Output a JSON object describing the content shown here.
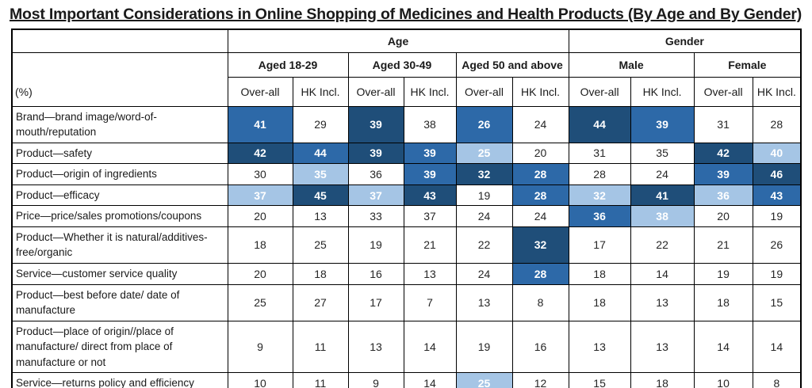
{
  "title": "Most Important Considerations in Online Shopping of Medicines and Health Products (By Age and By Gender)",
  "colors": {
    "dark": "#1F4E79",
    "medium": "#2D69A8",
    "light": "#A5C5E5",
    "highlight_text": "#FFFFFF"
  },
  "table": {
    "unit_label": "(%)",
    "group_headers": [
      {
        "label": "Age",
        "span": 6
      },
      {
        "label": "Gender",
        "span": 4
      }
    ],
    "subgroup_headers": [
      "Aged 18-29",
      "Aged 30-49",
      "Aged 50 and above",
      "Male",
      "Female"
    ],
    "measure_headers": [
      "Over-all",
      "HK Incl.",
      "Over-all",
      "HK Incl.",
      "Over-all",
      "HK Incl.",
      "Over-all",
      "HK Incl.",
      "Over-all",
      "HK Incl."
    ],
    "rows": [
      {
        "label": "Brand—brand image/word-of-mouth/reputation",
        "values": [
          41,
          29,
          39,
          38,
          26,
          24,
          44,
          39,
          31,
          28
        ],
        "highlights": [
          "m",
          "",
          "d",
          "",
          "m",
          "",
          "d",
          "m",
          "",
          ""
        ]
      },
      {
        "label": "Product—safety",
        "values": [
          42,
          44,
          39,
          39,
          25,
          20,
          31,
          35,
          42,
          40
        ],
        "highlights": [
          "d",
          "m",
          "d",
          "m",
          "l",
          "",
          "",
          "",
          "d",
          "l"
        ]
      },
      {
        "label": "Product—origin of ingredients",
        "values": [
          30,
          35,
          36,
          39,
          32,
          28,
          28,
          24,
          39,
          46
        ],
        "highlights": [
          "",
          "l",
          "",
          "m",
          "d",
          "m",
          "",
          "",
          "m",
          "d"
        ]
      },
      {
        "label": "Product—efficacy",
        "values": [
          37,
          45,
          37,
          43,
          19,
          28,
          32,
          41,
          36,
          43
        ],
        "highlights": [
          "l",
          "d",
          "l",
          "d",
          "",
          "m",
          "l",
          "d",
          "l",
          "m"
        ]
      },
      {
        "label": "Price—price/sales promotions/coupons",
        "values": [
          20,
          13,
          33,
          37,
          24,
          24,
          36,
          38,
          20,
          19
        ],
        "highlights": [
          "",
          "",
          "",
          "",
          "",
          "",
          "m",
          "l",
          "",
          ""
        ]
      },
      {
        "label": "Product—Whether it is natural/additives-free/organic",
        "values": [
          18,
          25,
          19,
          21,
          22,
          32,
          17,
          22,
          21,
          26
        ],
        "highlights": [
          "",
          "",
          "",
          "",
          "",
          "d",
          "",
          "",
          "",
          ""
        ]
      },
      {
        "label": "Service—customer service quality",
        "values": [
          20,
          18,
          16,
          13,
          24,
          28,
          18,
          14,
          19,
          19
        ],
        "highlights": [
          "",
          "",
          "",
          "",
          "",
          "m",
          "",
          "",
          "",
          ""
        ]
      },
      {
        "label": "Product—best before date/ date of manufacture",
        "values": [
          25,
          27,
          17,
          7,
          13,
          8,
          18,
          13,
          18,
          15
        ],
        "highlights": [
          "",
          "",
          "",
          "",
          "",
          "",
          "",
          "",
          "",
          ""
        ]
      },
      {
        "label": "Product—place of origin//place of manufacture/ direct from place of manufacture or not",
        "values": [
          9,
          11,
          13,
          14,
          19,
          16,
          13,
          13,
          14,
          14
        ],
        "highlights": [
          "",
          "",
          "",
          "",
          "",
          "",
          "",
          "",
          "",
          ""
        ]
      },
      {
        "label": "Service—returns policy and efficiency",
        "values": [
          10,
          11,
          9,
          14,
          25,
          12,
          15,
          18,
          10,
          8
        ],
        "highlights": [
          "",
          "",
          "",
          "",
          "l",
          "",
          "",
          "",
          "",
          ""
        ]
      }
    ]
  }
}
